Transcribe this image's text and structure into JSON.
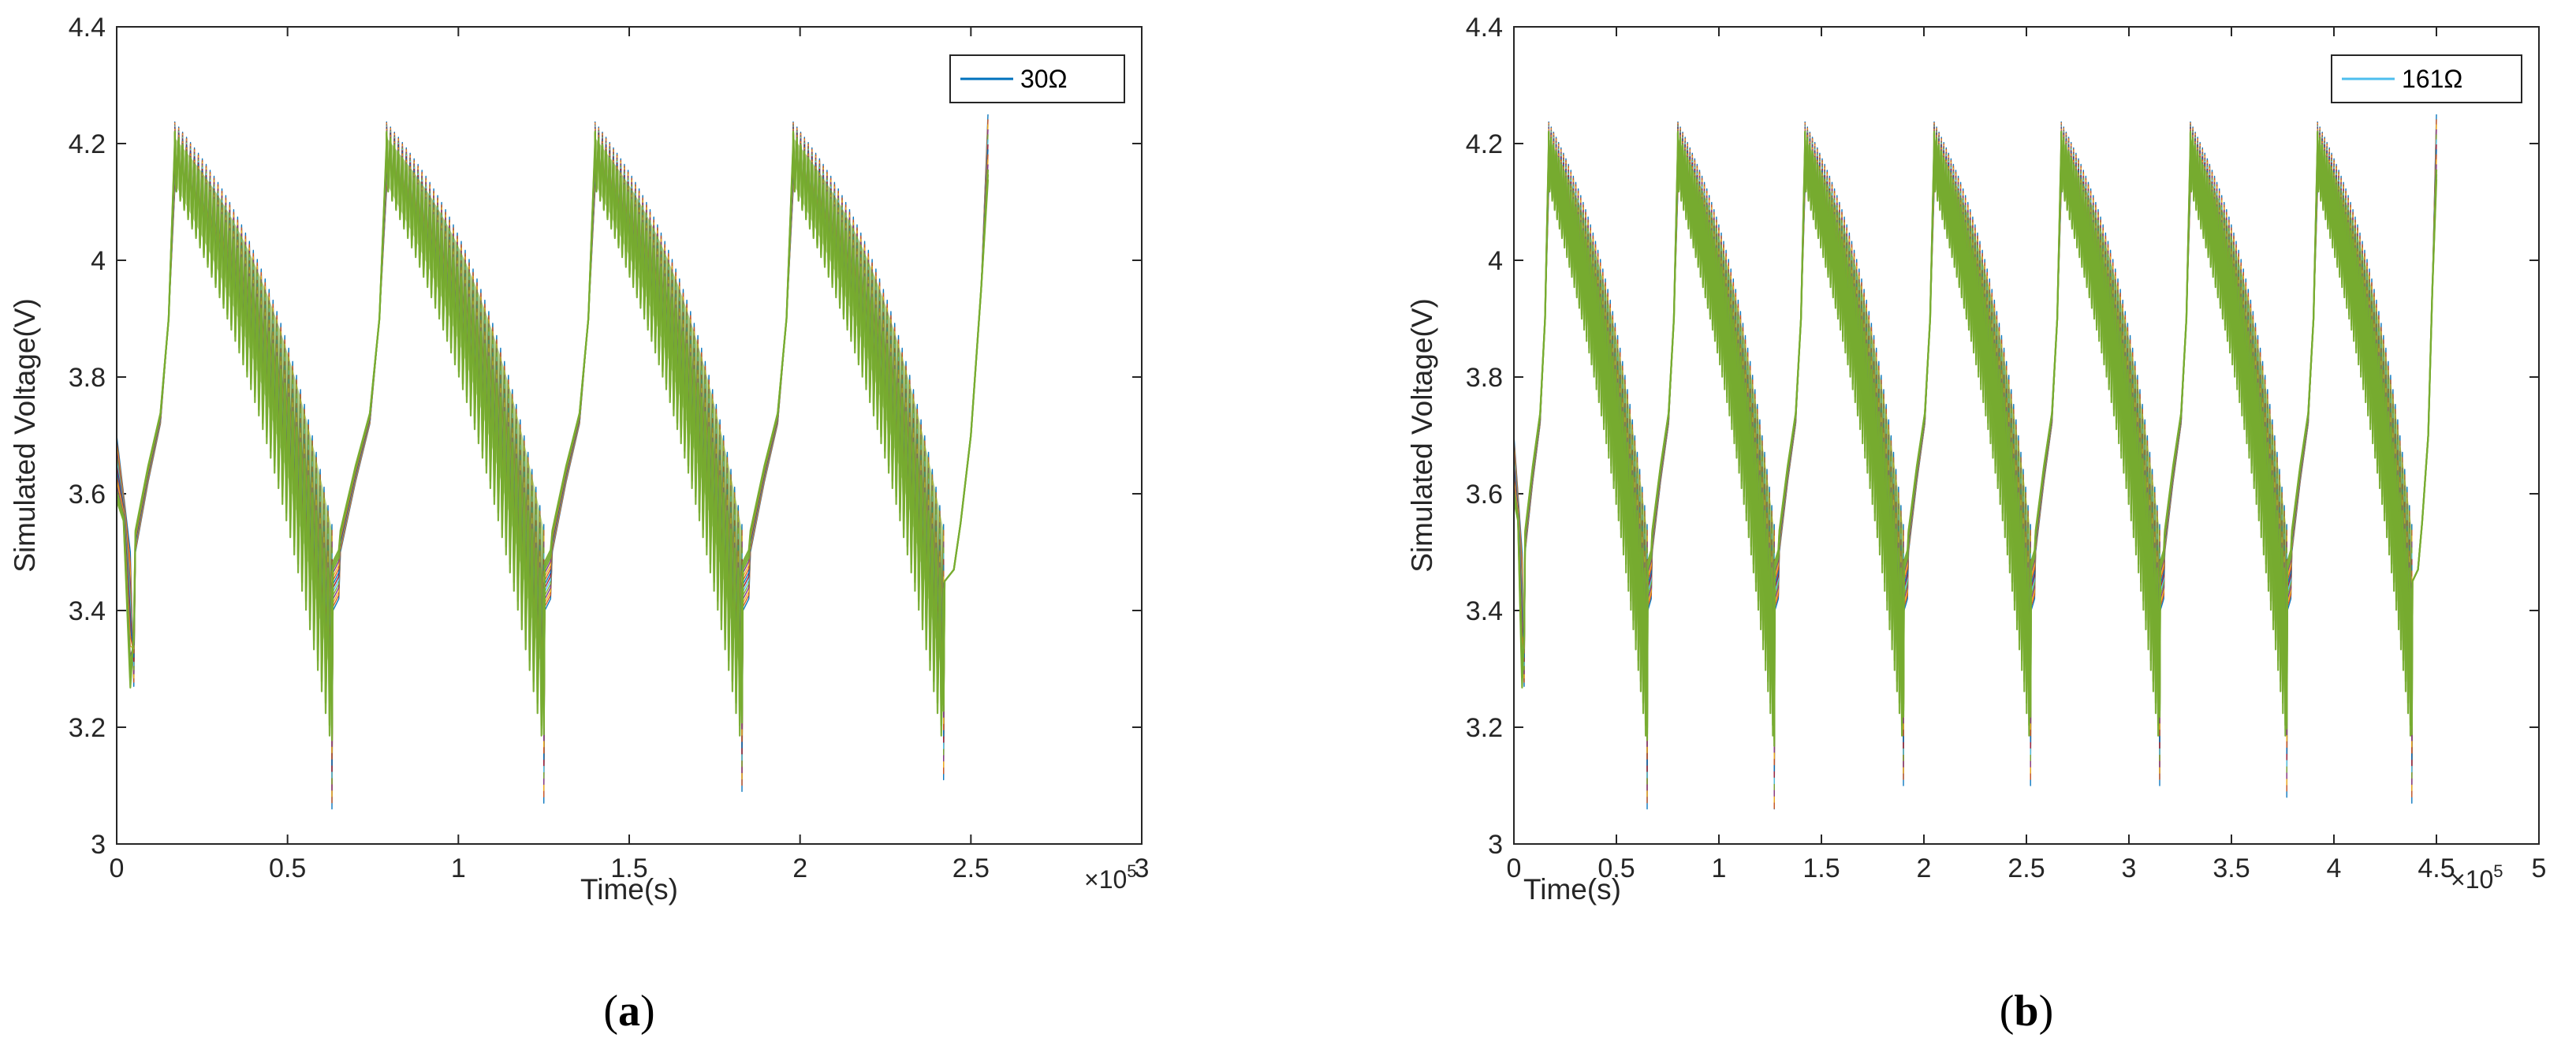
{
  "chart_data": [
    {
      "type": "line",
      "panel_label": "a",
      "xlabel": "Time(s)",
      "ylabel": "Simulated Voltage(V)",
      "xlim": [
        0,
        3
      ],
      "ylim": [
        3,
        4.4
      ],
      "x_multiplier": "×10",
      "x_multiplier_exp": "5",
      "xticks": [
        0,
        0.5,
        1,
        1.5,
        2,
        2.5,
        3
      ],
      "xtick_labels": [
        "0",
        "0.5",
        "1",
        "1.5",
        "2",
        "2.5",
        "3"
      ],
      "yticks": [
        3,
        3.2,
        3.4,
        3.6,
        3.8,
        4,
        4.2,
        4.4
      ],
      "ytick_labels": [
        "3",
        "3.2",
        "3.4",
        "3.6",
        "3.8",
        "4",
        "4.2",
        "4.4"
      ],
      "legend": {
        "label": "30Ω",
        "color": "#0072BD",
        "position": "top-right"
      },
      "x_end": 2.55,
      "cycles": [
        {
          "charge_start": 0.05,
          "peak": 0.17,
          "discharge_end": 0.63,
          "min_v": 3.06
        },
        {
          "charge_start": 0.65,
          "peak": 0.79,
          "discharge_end": 1.25,
          "min_v": 3.07
        },
        {
          "charge_start": 1.27,
          "peak": 1.4,
          "discharge_end": 1.83,
          "min_v": 3.09
        },
        {
          "charge_start": 1.85,
          "peak": 1.98,
          "discharge_end": 2.42,
          "min_v": 3.11
        }
      ]
    },
    {
      "type": "line",
      "panel_label": "b",
      "xlabel": "Time(s)",
      "ylabel": "Simulated Voltage(V)",
      "xlim": [
        0,
        5
      ],
      "ylim": [
        3,
        4.4
      ],
      "x_multiplier": "×10",
      "x_multiplier_exp": "5",
      "xticks": [
        0,
        0.5,
        1,
        1.5,
        2,
        2.5,
        3,
        3.5,
        4,
        4.5,
        5
      ],
      "xtick_labels": [
        "0",
        "0.5",
        "1",
        "1.5",
        "2",
        "2.5",
        "3",
        "3.5",
        "4",
        "4.5",
        "5"
      ],
      "yticks": [
        3,
        3.2,
        3.4,
        3.6,
        3.8,
        4,
        4.2,
        4.4
      ],
      "ytick_labels": [
        "3",
        "3.2",
        "3.4",
        "3.6",
        "3.8",
        "4",
        "4.2",
        "4.4"
      ],
      "legend": {
        "label": "161Ω",
        "color": "#4DBEEE",
        "position": "top-right"
      },
      "x_end": 4.5,
      "cycles": [
        {
          "charge_start": 0.05,
          "peak": 0.17,
          "discharge_end": 0.65,
          "min_v": 3.06
        },
        {
          "charge_start": 0.67,
          "peak": 0.8,
          "discharge_end": 1.27,
          "min_v": 3.05
        },
        {
          "charge_start": 1.29,
          "peak": 1.42,
          "discharge_end": 1.9,
          "min_v": 3.1
        },
        {
          "charge_start": 1.92,
          "peak": 2.05,
          "discharge_end": 2.52,
          "min_v": 3.1
        },
        {
          "charge_start": 2.54,
          "peak": 2.67,
          "discharge_end": 3.15,
          "min_v": 3.1
        },
        {
          "charge_start": 3.17,
          "peak": 3.3,
          "discharge_end": 3.77,
          "min_v": 3.08
        },
        {
          "charge_start": 3.79,
          "peak": 3.92,
          "discharge_end": 4.38,
          "min_v": 3.07
        }
      ]
    }
  ],
  "series_colors": [
    "#0072BD",
    "#D95319",
    "#EDB120",
    "#7E2F8E",
    "#77AC30",
    "#4DBEEE",
    "#A2142F"
  ],
  "fill_color": "#77AC30"
}
